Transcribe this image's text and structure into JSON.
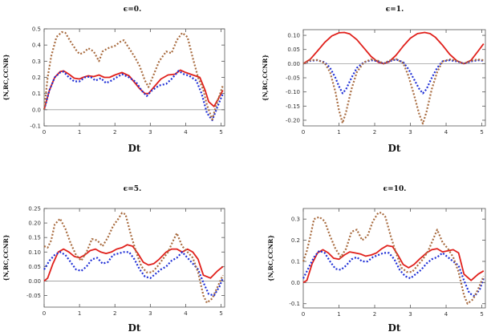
{
  "chart_data": [
    {
      "type": "line",
      "title": "ϵ=0.",
      "xlabel": "Dt",
      "ylabel": "{N,RC,CCNR}",
      "xlim": [
        0,
        5.1
      ],
      "ylim": [
        -0.1,
        0.5
      ],
      "xticks": [
        "0",
        "1",
        "2",
        "3",
        "4",
        "5"
      ],
      "yticks": [
        "-0.1",
        "0.0",
        "0.1",
        "0.2",
        "0.3",
        "0.4",
        "0.5"
      ],
      "series": [
        {
          "color": "#e0201b",
          "style": "solid",
          "x": [
            0,
            0.15,
            0.3,
            0.45,
            0.55,
            0.7,
            0.85,
            1.0,
            1.1,
            1.25,
            1.4,
            1.55,
            1.7,
            1.85,
            2.0,
            2.2,
            2.4,
            2.55,
            2.7,
            2.85,
            2.95,
            3.1,
            3.3,
            3.5,
            3.7,
            3.85,
            4.0,
            4.2,
            4.4,
            4.55,
            4.65,
            4.8,
            4.95,
            5.05
          ],
          "y": [
            0,
            0.12,
            0.2,
            0.235,
            0.24,
            0.22,
            0.195,
            0.19,
            0.2,
            0.21,
            0.205,
            0.215,
            0.2,
            0.2,
            0.215,
            0.23,
            0.21,
            0.17,
            0.13,
            0.1,
            0.1,
            0.14,
            0.19,
            0.215,
            0.22,
            0.245,
            0.23,
            0.215,
            0.2,
            0.12,
            0.05,
            0.02,
            0.08,
            0.12
          ]
        },
        {
          "color": "#1f2fd6",
          "style": "dotted",
          "x": [
            0,
            0.15,
            0.3,
            0.45,
            0.55,
            0.7,
            0.85,
            1.0,
            1.15,
            1.3,
            1.45,
            1.6,
            1.75,
            1.9,
            2.05,
            2.2,
            2.4,
            2.6,
            2.75,
            2.9,
            3.05,
            3.25,
            3.45,
            3.6,
            3.8,
            3.95,
            4.1,
            4.3,
            4.45,
            4.6,
            4.75,
            4.9,
            5.05
          ],
          "y": [
            0,
            0.12,
            0.2,
            0.23,
            0.235,
            0.2,
            0.175,
            0.175,
            0.2,
            0.205,
            0.18,
            0.195,
            0.165,
            0.18,
            0.2,
            0.22,
            0.2,
            0.17,
            0.12,
            0.085,
            0.12,
            0.15,
            0.16,
            0.19,
            0.24,
            0.22,
            0.21,
            0.18,
            0.1,
            -0.02,
            -0.065,
            0.02,
            0.1
          ]
        },
        {
          "color": "#a86b3f",
          "style": "dotted",
          "x": [
            0,
            0.1,
            0.2,
            0.35,
            0.5,
            0.6,
            0.75,
            0.9,
            1.0,
            1.1,
            1.25,
            1.4,
            1.55,
            1.65,
            1.8,
            2.0,
            2.15,
            2.25,
            2.4,
            2.55,
            2.7,
            2.85,
            2.95,
            3.1,
            3.25,
            3.45,
            3.6,
            3.75,
            3.9,
            4.05,
            4.2,
            4.35,
            4.5,
            4.6,
            4.75,
            4.85,
            5.05
          ],
          "y": [
            0,
            0.2,
            0.33,
            0.45,
            0.48,
            0.475,
            0.42,
            0.37,
            0.345,
            0.35,
            0.38,
            0.36,
            0.3,
            0.36,
            0.38,
            0.395,
            0.42,
            0.43,
            0.38,
            0.33,
            0.27,
            0.18,
            0.14,
            0.22,
            0.3,
            0.36,
            0.35,
            0.43,
            0.475,
            0.45,
            0.32,
            0.2,
            0.12,
            0.03,
            -0.06,
            0.02,
            0.15
          ]
        }
      ]
    },
    {
      "type": "line",
      "title": "ϵ=1.",
      "xlabel": "Dt",
      "ylabel": "{N,RC,CCNR}",
      "xlim": [
        0,
        5.1
      ],
      "ylim": [
        -0.22,
        0.12
      ],
      "xticks": [
        "0",
        "1",
        "2",
        "3",
        "4",
        "5"
      ],
      "yticks": [
        "-0.20",
        "-0.15",
        "-0.10",
        "-0.05",
        "0.00",
        "0.05",
        "0.10"
      ],
      "series": [
        {
          "color": "#e0201b",
          "style": "solid",
          "x": [
            0,
            0.2,
            0.4,
            0.6,
            0.8,
            1.0,
            1.15,
            1.3,
            1.5,
            1.7,
            1.9,
            2.1,
            2.25,
            2.4,
            2.6,
            2.8,
            3.0,
            3.2,
            3.4,
            3.55,
            3.7,
            3.9,
            4.1,
            4.3,
            4.5,
            4.7,
            4.9,
            5.05
          ],
          "y": [
            0,
            0.016,
            0.045,
            0.075,
            0.098,
            0.109,
            0.11,
            0.105,
            0.085,
            0.055,
            0.025,
            0.005,
            0,
            0.006,
            0.03,
            0.062,
            0.09,
            0.106,
            0.11,
            0.106,
            0.093,
            0.065,
            0.033,
            0.01,
            0,
            0.012,
            0.045,
            0.07
          ]
        },
        {
          "color": "#1f2fd6",
          "style": "dotted",
          "x": [
            0,
            0.2,
            0.4,
            0.6,
            0.75,
            0.9,
            1.0,
            1.1,
            1.2,
            1.35,
            1.5,
            1.7,
            1.9,
            2.1,
            2.25,
            2.4,
            2.6,
            2.8,
            2.95,
            3.1,
            3.25,
            3.35,
            3.45,
            3.6,
            3.75,
            3.9,
            4.1,
            4.3,
            4.5,
            4.7,
            4.9,
            5.05
          ],
          "y": [
            0,
            0.01,
            0.012,
            0.005,
            -0.015,
            -0.05,
            -0.08,
            -0.105,
            -0.09,
            -0.05,
            -0.015,
            0.005,
            0.012,
            0.008,
            0,
            0.008,
            0.015,
            0.005,
            -0.02,
            -0.055,
            -0.09,
            -0.105,
            -0.09,
            -0.05,
            -0.015,
            0.008,
            0.012,
            0.008,
            0,
            0.008,
            0.012,
            0.01
          ]
        },
        {
          "color": "#a86b3f",
          "style": "dotted",
          "x": [
            0,
            0.2,
            0.4,
            0.6,
            0.75,
            0.9,
            1.0,
            1.1,
            1.2,
            1.35,
            1.5,
            1.7,
            1.9,
            2.1,
            2.25,
            2.4,
            2.6,
            2.8,
            2.95,
            3.1,
            3.25,
            3.35,
            3.45,
            3.6,
            3.75,
            3.9,
            4.1,
            4.3,
            4.5,
            4.7,
            4.9,
            5.05
          ],
          "y": [
            0,
            0.012,
            0.013,
            0.002,
            -0.03,
            -0.1,
            -0.165,
            -0.21,
            -0.17,
            -0.09,
            -0.03,
            0.005,
            0.015,
            0.01,
            0,
            0.01,
            0.016,
            0.002,
            -0.045,
            -0.11,
            -0.18,
            -0.212,
            -0.17,
            -0.09,
            -0.03,
            0.008,
            0.015,
            0.01,
            0,
            0.01,
            0.015,
            0.012
          ]
        }
      ]
    },
    {
      "type": "line",
      "title": "ϵ=5.",
      "xlabel": "Dt",
      "ylabel": "{N,RC,CCNR}",
      "xlim": [
        0,
        5.1
      ],
      "ylim": [
        -0.09,
        0.25
      ],
      "xticks": [
        "0",
        "1",
        "2",
        "3",
        "4",
        "5"
      ],
      "yticks": [
        "-0.05",
        "0.00",
        "0.05",
        "0.10",
        "0.15",
        "0.20",
        "0.25"
      ],
      "series": [
        {
          "color": "#e0201b",
          "style": "solid",
          "x": [
            0,
            0.1,
            0.25,
            0.4,
            0.55,
            0.7,
            0.85,
            1.0,
            1.15,
            1.3,
            1.45,
            1.6,
            1.75,
            1.9,
            2.05,
            2.2,
            2.35,
            2.5,
            2.65,
            2.8,
            2.95,
            3.1,
            3.25,
            3.45,
            3.6,
            3.75,
            3.9,
            4.05,
            4.2,
            4.35,
            4.5,
            4.7,
            4.9,
            5.05
          ],
          "y": [
            0,
            0.01,
            0.06,
            0.1,
            0.11,
            0.1,
            0.085,
            0.08,
            0.09,
            0.105,
            0.11,
            0.1,
            0.095,
            0.1,
            0.11,
            0.115,
            0.125,
            0.12,
            0.095,
            0.065,
            0.055,
            0.06,
            0.075,
            0.1,
            0.11,
            0.11,
            0.1,
            0.11,
            0.1,
            0.075,
            0.02,
            0.01,
            0.035,
            0.05
          ]
        },
        {
          "color": "#1f2fd6",
          "style": "dotted",
          "x": [
            0,
            0.15,
            0.3,
            0.45,
            0.6,
            0.75,
            0.9,
            1.05,
            1.2,
            1.35,
            1.5,
            1.65,
            1.8,
            1.95,
            2.1,
            2.25,
            2.4,
            2.55,
            2.7,
            2.85,
            3.0,
            3.15,
            3.3,
            3.45,
            3.6,
            3.75,
            3.9,
            4.05,
            4.2,
            4.35,
            4.5,
            4.65,
            4.8,
            4.95,
            5.05
          ],
          "y": [
            0.04,
            0.07,
            0.09,
            0.1,
            0.09,
            0.065,
            0.04,
            0.035,
            0.05,
            0.075,
            0.08,
            0.06,
            0.065,
            0.09,
            0.095,
            0.1,
            0.1,
            0.075,
            0.04,
            0.015,
            0.01,
            0.025,
            0.04,
            0.05,
            0.07,
            0.08,
            0.1,
            0.08,
            0.06,
            0.04,
            -0.005,
            -0.045,
            -0.05,
            -0.02,
            0.01
          ]
        },
        {
          "color": "#a86b3f",
          "style": "dotted",
          "x": [
            0,
            0.1,
            0.2,
            0.3,
            0.45,
            0.6,
            0.75,
            0.9,
            1.05,
            1.2,
            1.35,
            1.5,
            1.65,
            1.8,
            1.95,
            2.1,
            2.2,
            2.3,
            2.45,
            2.6,
            2.75,
            2.9,
            3.05,
            3.2,
            3.35,
            3.5,
            3.65,
            3.75,
            3.9,
            4.05,
            4.2,
            4.35,
            4.5,
            4.6,
            4.75,
            4.9,
            5.05
          ],
          "y": [
            0.12,
            0.115,
            0.14,
            0.195,
            0.215,
            0.18,
            0.13,
            0.09,
            0.07,
            0.1,
            0.145,
            0.14,
            0.12,
            0.15,
            0.19,
            0.215,
            0.235,
            0.23,
            0.16,
            0.1,
            0.05,
            0.03,
            0.03,
            0.05,
            0.075,
            0.1,
            0.14,
            0.165,
            0.12,
            0.1,
            0.08,
            0.03,
            -0.05,
            -0.075,
            -0.06,
            -0.02,
            0.02
          ]
        }
      ]
    },
    {
      "type": "line",
      "title": "ϵ=10.",
      "xlabel": "Dt",
      "ylabel": "{N,RC,CCNR}",
      "xlim": [
        0,
        5.1
      ],
      "ylim": [
        -0.12,
        0.35
      ],
      "xticks": [
        "0",
        "1",
        "2",
        "3",
        "4",
        "5"
      ],
      "yticks": [
        "-0.1",
        "0.0",
        "0.1",
        "0.2",
        "0.3"
      ],
      "series": [
        {
          "color": "#e0201b",
          "style": "solid",
          "x": [
            0,
            0.1,
            0.25,
            0.4,
            0.55,
            0.7,
            0.85,
            1.0,
            1.15,
            1.3,
            1.45,
            1.6,
            1.75,
            1.9,
            2.05,
            2.2,
            2.35,
            2.5,
            2.65,
            2.8,
            2.95,
            3.1,
            3.25,
            3.45,
            3.6,
            3.75,
            3.9,
            4.05,
            4.2,
            4.35,
            4.5,
            4.7,
            4.9,
            5.05
          ],
          "y": [
            0,
            0.01,
            0.09,
            0.14,
            0.155,
            0.14,
            0.115,
            0.11,
            0.13,
            0.145,
            0.14,
            0.135,
            0.125,
            0.13,
            0.14,
            0.16,
            0.175,
            0.17,
            0.13,
            0.085,
            0.07,
            0.085,
            0.11,
            0.14,
            0.155,
            0.16,
            0.145,
            0.15,
            0.155,
            0.14,
            0.04,
            0.01,
            0.04,
            0.055
          ]
        },
        {
          "color": "#1f2fd6",
          "style": "dotted",
          "x": [
            0,
            0.15,
            0.3,
            0.45,
            0.6,
            0.75,
            0.9,
            1.05,
            1.2,
            1.35,
            1.5,
            1.65,
            1.8,
            1.95,
            2.1,
            2.25,
            2.4,
            2.55,
            2.7,
            2.85,
            3.0,
            3.15,
            3.3,
            3.45,
            3.6,
            3.75,
            3.9,
            4.05,
            4.2,
            4.35,
            4.5,
            4.65,
            4.8,
            4.95,
            5.05
          ],
          "y": [
            0.02,
            0.07,
            0.12,
            0.15,
            0.14,
            0.1,
            0.065,
            0.06,
            0.08,
            0.11,
            0.12,
            0.1,
            0.1,
            0.12,
            0.13,
            0.14,
            0.14,
            0.11,
            0.06,
            0.03,
            0.02,
            0.04,
            0.06,
            0.09,
            0.11,
            0.12,
            0.14,
            0.12,
            0.1,
            0.08,
            0.01,
            -0.05,
            -0.065,
            -0.03,
            0.02
          ]
        },
        {
          "color": "#a86b3f",
          "style": "dotted",
          "x": [
            0,
            0.1,
            0.2,
            0.3,
            0.45,
            0.6,
            0.75,
            0.9,
            1.05,
            1.2,
            1.35,
            1.5,
            1.65,
            1.8,
            1.95,
            2.1,
            2.2,
            2.3,
            2.45,
            2.6,
            2.75,
            2.9,
            3.05,
            3.2,
            3.35,
            3.5,
            3.65,
            3.75,
            3.9,
            4.05,
            4.2,
            4.35,
            4.5,
            4.6,
            4.75,
            4.9,
            5.05
          ],
          "y": [
            0.1,
            0.15,
            0.22,
            0.3,
            0.31,
            0.29,
            0.22,
            0.16,
            0.12,
            0.16,
            0.24,
            0.25,
            0.2,
            0.22,
            0.29,
            0.33,
            0.33,
            0.31,
            0.22,
            0.14,
            0.07,
            0.05,
            0.05,
            0.08,
            0.11,
            0.15,
            0.21,
            0.25,
            0.19,
            0.16,
            0.12,
            0.05,
            -0.06,
            -0.1,
            -0.08,
            -0.03,
            0.03
          ]
        }
      ]
    }
  ]
}
